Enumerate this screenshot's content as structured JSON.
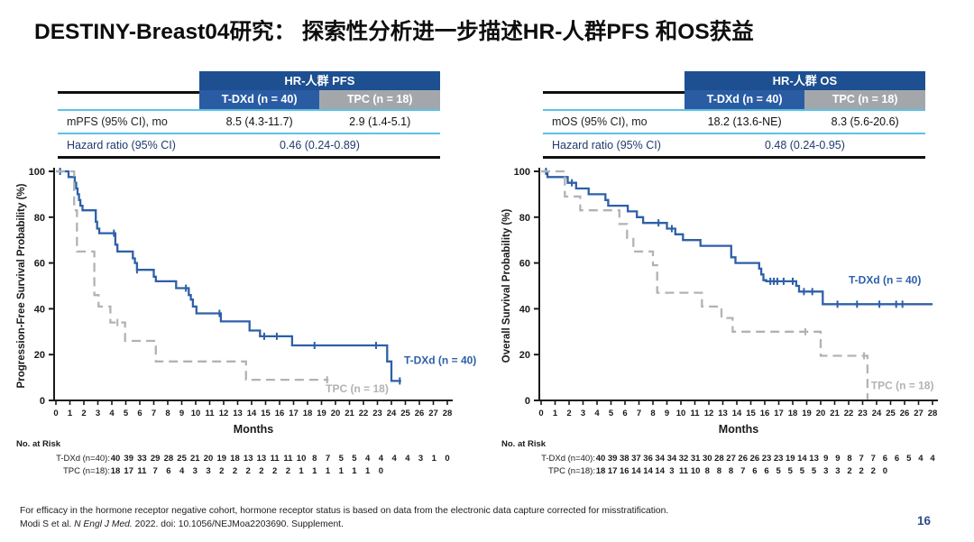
{
  "title": "DESTINY-Breast04研究： 探索性分析进一步描述HR-人群PFS 和OS获益",
  "page_number": "16",
  "footer": {
    "line1": "For efficacy in the hormone receptor negative cohort, hormone receptor status is based on data from the electronic data capture corrected for misstratification.",
    "line2_prefix": "Modi S et al. ",
    "line2_italic": "N Engl J Med.",
    "line2_suffix": " 2022. doi: 10.1056/NEJMoa2203690. Supplement."
  },
  "colors": {
    "tdxd_blue": "#2e5fa8",
    "tpc_gray": "#b0b3b6",
    "header_blue": "#1d4f91",
    "subheader_blue": "#2a5ca4",
    "subheader_gray": "#a3a7ac",
    "rule_light_blue": "#5bc2e7",
    "navy_text": "#1f3a6e",
    "axis": "#1a1a1a"
  },
  "chart_data": [
    {
      "type": "line",
      "id": "pfs",
      "title": "HR-人群 PFS",
      "table": {
        "group_header": "HR-人群 PFS",
        "col1_header": "T-DXd (n = 40)",
        "col2_header": "TPC (n = 18)",
        "row1_label": "mPFS (95% CI), mo",
        "row1_val1": "8.5 (4.3-11.7)",
        "row1_val2": "2.9 (1.4-5.1)",
        "hr_label": "Hazard ratio (95% CI)",
        "hr_value": "0.46 (0.24-0.89)"
      },
      "ylabel": "Progression-Free Survival Probability (%)",
      "xlabel": "Months",
      "xlim": [
        0,
        28
      ],
      "ylim": [
        0,
        100
      ],
      "yticks": [
        0,
        20,
        40,
        60,
        80,
        100
      ],
      "series": [
        {
          "name": "T-DXd (n = 40)",
          "color_key": "tdxd_blue",
          "dashed": false,
          "label_pos": [
            24.9,
            16
          ],
          "points": [
            [
              0,
              100
            ],
            [
              0.9,
              100
            ],
            [
              0.9,
              97.5
            ],
            [
              1.35,
              97.5
            ],
            [
              1.35,
              95
            ],
            [
              1.45,
              95
            ],
            [
              1.45,
              92.5
            ],
            [
              1.55,
              92.5
            ],
            [
              1.55,
              90
            ],
            [
              1.65,
              90
            ],
            [
              1.65,
              87.5
            ],
            [
              1.75,
              87.5
            ],
            [
              1.75,
              85
            ],
            [
              1.9,
              85
            ],
            [
              1.9,
              83
            ],
            [
              2.85,
              83
            ],
            [
              2.85,
              78
            ],
            [
              2.95,
              78
            ],
            [
              2.95,
              75
            ],
            [
              3.1,
              75
            ],
            [
              3.1,
              73
            ],
            [
              4.25,
              73
            ],
            [
              4.25,
              68
            ],
            [
              4.4,
              68
            ],
            [
              4.4,
              65
            ],
            [
              5.5,
              65
            ],
            [
              5.5,
              62
            ],
            [
              5.65,
              62
            ],
            [
              5.65,
              60
            ],
            [
              5.8,
              60
            ],
            [
              5.8,
              57
            ],
            [
              7.0,
              57
            ],
            [
              7.0,
              54
            ],
            [
              7.15,
              54
            ],
            [
              7.15,
              52
            ],
            [
              8.6,
              52
            ],
            [
              8.6,
              49
            ],
            [
              9.5,
              49
            ],
            [
              9.5,
              46
            ],
            [
              9.65,
              46
            ],
            [
              9.65,
              44
            ],
            [
              9.8,
              44
            ],
            [
              9.8,
              41
            ],
            [
              10.05,
              41
            ],
            [
              10.05,
              38
            ],
            [
              11.8,
              38
            ],
            [
              11.8,
              34.5
            ],
            [
              13.85,
              34.5
            ],
            [
              13.85,
              30.5
            ],
            [
              14.6,
              30.5
            ],
            [
              14.6,
              28
            ],
            [
              16.9,
              28
            ],
            [
              16.9,
              24
            ],
            [
              23.7,
              24
            ],
            [
              23.7,
              17
            ],
            [
              24.0,
              17
            ],
            [
              24.0,
              8.5
            ],
            [
              24.7,
              8.5
            ]
          ],
          "censors": [
            [
              0.3,
              100
            ],
            [
              4.15,
              73
            ],
            [
              5.8,
              57
            ],
            [
              9.3,
              49
            ],
            [
              11.7,
              38
            ],
            [
              14.9,
              28
            ],
            [
              15.8,
              28
            ],
            [
              18.5,
              24
            ],
            [
              22.9,
              24
            ],
            [
              24.6,
              8.5
            ]
          ]
        },
        {
          "name": "TPC (n = 18)",
          "color_key": "tpc_gray",
          "dashed": true,
          "label_pos": [
            19.3,
            3.5
          ],
          "points": [
            [
              0,
              100
            ],
            [
              1.3,
              100
            ],
            [
              1.3,
              83
            ],
            [
              1.5,
              83
            ],
            [
              1.5,
              65
            ],
            [
              2.75,
              65
            ],
            [
              2.75,
              46
            ],
            [
              3.05,
              46
            ],
            [
              3.05,
              41
            ],
            [
              3.9,
              41
            ],
            [
              3.9,
              34
            ],
            [
              4.95,
              34
            ],
            [
              4.95,
              26
            ],
            [
              7.15,
              26
            ],
            [
              7.15,
              17
            ],
            [
              13.6,
              17
            ],
            [
              13.6,
              9
            ],
            [
              19.5,
              9
            ]
          ],
          "censors": [
            [
              4.4,
              34
            ],
            [
              19.4,
              9
            ]
          ]
        }
      ],
      "risk": {
        "title": "No. at Risk",
        "rows": [
          {
            "label": "T-DXd (n=40):",
            "values": [
              40,
              39,
              33,
              29,
              28,
              25,
              21,
              20,
              19,
              18,
              13,
              13,
              11,
              11,
              10,
              8,
              7,
              5,
              5,
              4,
              4,
              4,
              4,
              3,
              1,
              0
            ]
          },
          {
            "label": "TPC (n=18):",
            "values": [
              18,
              17,
              11,
              7,
              6,
              4,
              3,
              3,
              2,
              2,
              2,
              2,
              2,
              2,
              1,
              1,
              1,
              1,
              1,
              1,
              0
            ]
          }
        ]
      }
    },
    {
      "type": "line",
      "id": "os",
      "title": "HR-人群 OS",
      "table": {
        "group_header": "HR-人群 OS",
        "col1_header": "T-DXd (n = 40)",
        "col2_header": "TPC (n = 18)",
        "row1_label": "mOS (95% CI), mo",
        "row1_val1": "18.2 (13.6-NE)",
        "row1_val2": "8.3 (5.6-20.6)",
        "hr_label": "Hazard ratio (95% CI)",
        "hr_value": "0.48 (0.24-0.95)"
      },
      "ylabel": "Overall Survival Probability (%)",
      "xlabel": "Months",
      "xlim": [
        0,
        28
      ],
      "ylim": [
        0,
        100
      ],
      "yticks": [
        0,
        20,
        40,
        60,
        80,
        100
      ],
      "series": [
        {
          "name": "T-DXd (n = 40)",
          "color_key": "tdxd_blue",
          "dashed": false,
          "label_pos": [
            22.0,
            51
          ],
          "points": [
            [
              0,
              100
            ],
            [
              0.45,
              100
            ],
            [
              0.45,
              97.5
            ],
            [
              1.9,
              97.5
            ],
            [
              1.9,
              95
            ],
            [
              2.5,
              95
            ],
            [
              2.5,
              92.5
            ],
            [
              3.4,
              92.5
            ],
            [
              3.4,
              90
            ],
            [
              4.6,
              90
            ],
            [
              4.6,
              87.5
            ],
            [
              4.8,
              87.5
            ],
            [
              4.8,
              85
            ],
            [
              6.2,
              85
            ],
            [
              6.2,
              82.5
            ],
            [
              6.85,
              82.5
            ],
            [
              6.85,
              80
            ],
            [
              7.3,
              80
            ],
            [
              7.3,
              77.5
            ],
            [
              9.0,
              77.5
            ],
            [
              9.0,
              75
            ],
            [
              9.6,
              75
            ],
            [
              9.6,
              72.5
            ],
            [
              10.15,
              72.5
            ],
            [
              10.15,
              70
            ],
            [
              11.4,
              70
            ],
            [
              11.4,
              67.5
            ],
            [
              13.6,
              67.5
            ],
            [
              13.6,
              62.5
            ],
            [
              13.9,
              62.5
            ],
            [
              13.9,
              60
            ],
            [
              15.6,
              60
            ],
            [
              15.6,
              57.5
            ],
            [
              15.75,
              57.5
            ],
            [
              15.75,
              55
            ],
            [
              15.9,
              55
            ],
            [
              15.9,
              52.5
            ],
            [
              16.1,
              52.5
            ],
            [
              16.1,
              52
            ],
            [
              18.25,
              52
            ],
            [
              18.25,
              50
            ],
            [
              18.45,
              50
            ],
            [
              18.45,
              47.5
            ],
            [
              20.15,
              47.5
            ],
            [
              20.15,
              42
            ],
            [
              28,
              42
            ]
          ],
          "censors": [
            [
              0.35,
              100
            ],
            [
              2.2,
              95
            ],
            [
              8.4,
              77.5
            ],
            [
              9.35,
              75
            ],
            [
              16.4,
              52
            ],
            [
              16.65,
              52
            ],
            [
              16.9,
              52
            ],
            [
              17.35,
              52
            ],
            [
              18.0,
              52
            ],
            [
              18.8,
              47.5
            ],
            [
              19.4,
              47.5
            ],
            [
              21.2,
              42
            ],
            [
              22.6,
              42
            ],
            [
              24.2,
              42
            ],
            [
              25.4,
              42
            ],
            [
              25.85,
              42
            ]
          ]
        },
        {
          "name": "TPC (n = 18)",
          "color_key": "tpc_gray",
          "dashed": true,
          "label_pos": [
            23.6,
            5
          ],
          "points": [
            [
              0,
              100
            ],
            [
              1.7,
              100
            ],
            [
              1.7,
              89
            ],
            [
              2.8,
              89
            ],
            [
              2.8,
              83
            ],
            [
              5.6,
              83
            ],
            [
              5.6,
              77
            ],
            [
              6.15,
              77
            ],
            [
              6.15,
              71
            ],
            [
              6.6,
              71
            ],
            [
              6.6,
              65
            ],
            [
              8.0,
              65
            ],
            [
              8.0,
              59
            ],
            [
              8.3,
              59
            ],
            [
              8.3,
              47
            ],
            [
              11.5,
              47
            ],
            [
              11.5,
              41
            ],
            [
              12.9,
              41
            ],
            [
              12.9,
              36
            ],
            [
              13.7,
              36
            ],
            [
              13.7,
              30
            ],
            [
              20.0,
              30
            ],
            [
              20.0,
              19.5
            ],
            [
              23.35,
              19.5
            ],
            [
              23.35,
              0.5
            ]
          ],
          "censors": [
            [
              18.9,
              30
            ],
            [
              23.1,
              19.5
            ]
          ]
        }
      ],
      "risk": {
        "title": "No. at Risk",
        "rows": [
          {
            "label": "T-DXd (n=40):",
            "values": [
              40,
              39,
              38,
              37,
              36,
              34,
              34,
              32,
              31,
              30,
              28,
              27,
              26,
              26,
              23,
              23,
              19,
              14,
              13,
              9,
              9,
              8,
              7,
              7,
              6,
              6,
              5,
              4,
              4
            ]
          },
          {
            "label": "TPC (n=18):",
            "values": [
              18,
              17,
              16,
              14,
              14,
              14,
              3,
              11,
              10,
              8,
              8,
              8,
              7,
              6,
              6,
              5,
              5,
              5,
              5,
              3,
              3,
              2,
              2,
              2,
              0
            ]
          }
        ]
      }
    }
  ]
}
